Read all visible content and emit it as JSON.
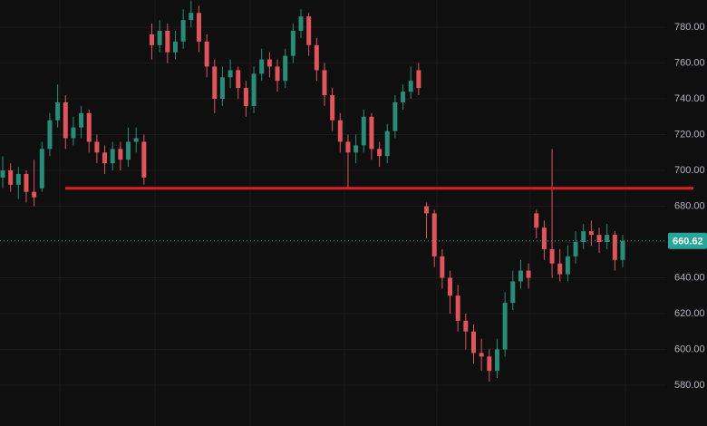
{
  "chart_data": {
    "type": "candlestick",
    "up_color": "#2a8c78",
    "down_color": "#e0545c",
    "open": [
      696,
      700,
      692,
      698,
      688,
      690,
      712,
      728,
      738,
      718,
      724,
      732,
      716,
      710,
      704,
      712,
      706,
      716,
      716,
      776,
      770,
      778,
      766,
      772,
      784,
      788,
      772,
      758,
      740,
      752,
      756,
      746,
      736,
      754,
      762,
      758,
      750,
      764,
      778,
      786,
      770,
      756,
      742,
      728,
      716,
      710,
      714,
      730,
      712,
      708,
      722,
      738,
      744,
      756,
      680,
      676,
      652,
      640,
      630,
      616,
      610,
      598,
      596,
      588,
      600,
      626,
      638,
      644,
      676,
      668,
      656,
      648,
      642,
      652,
      660,
      666,
      664,
      660,
      664,
      650
    ],
    "high": [
      708,
      704,
      702,
      700,
      706,
      716,
      732,
      748,
      742,
      730,
      736,
      734,
      720,
      714,
      716,
      716,
      724,
      724,
      720,
      782,
      784,
      782,
      778,
      790,
      795,
      792,
      776,
      762,
      758,
      762,
      758,
      750,
      758,
      768,
      766,
      762,
      768,
      782,
      790,
      788,
      774,
      760,
      746,
      732,
      720,
      720,
      734,
      732,
      716,
      726,
      742,
      748,
      758,
      760,
      682,
      678,
      656,
      644,
      636,
      620,
      614,
      606,
      600,
      606,
      632,
      644,
      650,
      648,
      678,
      672,
      712,
      656,
      658,
      666,
      670,
      672,
      668,
      670,
      666,
      664
    ],
    "low": [
      690,
      688,
      684,
      682,
      680,
      688,
      708,
      724,
      712,
      714,
      718,
      710,
      704,
      698,
      700,
      700,
      702,
      710,
      692,
      762,
      766,
      760,
      762,
      768,
      780,
      766,
      752,
      732,
      736,
      746,
      740,
      730,
      732,
      750,
      752,
      744,
      746,
      760,
      774,
      764,
      750,
      736,
      722,
      710,
      690,
      704,
      710,
      706,
      702,
      704,
      718,
      734,
      740,
      742,
      662,
      646,
      634,
      620,
      610,
      600,
      592,
      588,
      582,
      584,
      596,
      622,
      634,
      634,
      662,
      650,
      640,
      638,
      638,
      648,
      656,
      658,
      654,
      656,
      644,
      646
    ],
    "close": [
      700,
      692,
      698,
      688,
      685,
      712,
      728,
      738,
      718,
      724,
      732,
      716,
      710,
      704,
      712,
      706,
      716,
      718,
      696,
      770,
      778,
      766,
      772,
      784,
      788,
      772,
      758,
      740,
      752,
      756,
      746,
      736,
      754,
      762,
      758,
      750,
      764,
      778,
      786,
      770,
      756,
      742,
      728,
      716,
      710,
      714,
      730,
      712,
      708,
      722,
      738,
      744,
      750,
      746,
      676,
      652,
      640,
      630,
      616,
      610,
      598,
      596,
      588,
      600,
      626,
      638,
      644,
      640,
      668,
      656,
      648,
      642,
      652,
      660,
      666,
      664,
      660,
      664,
      650,
      660.62
    ],
    "ylim": [
      557.2,
      795.2
    ],
    "yticks": [
      {
        "value": 580,
        "label": "580.00"
      },
      {
        "value": 600,
        "label": "600.00"
      },
      {
        "value": 620,
        "label": "620.00"
      },
      {
        "value": 640,
        "label": "640.00"
      },
      {
        "value": 660,
        "label": "660.00"
      },
      {
        "value": 680,
        "label": "680.00"
      },
      {
        "value": 700,
        "label": "700.00"
      },
      {
        "value": 720,
        "label": "720.00"
      },
      {
        "value": 740,
        "label": "740.00"
      },
      {
        "value": 760,
        "label": "760.00"
      },
      {
        "value": 780,
        "label": "780.00"
      }
    ],
    "grid": true,
    "hline": {
      "value": 690,
      "color": "#e0201f"
    },
    "last_price": 660.62,
    "last_price_color": "#26a69a"
  }
}
